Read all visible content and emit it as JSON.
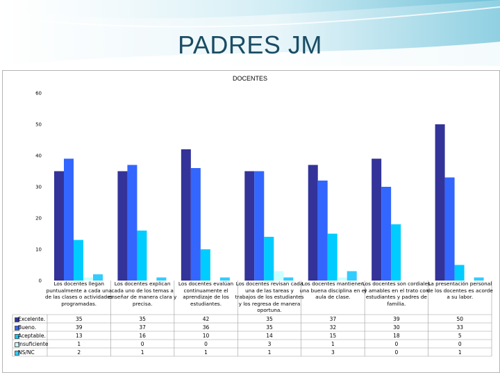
{
  "slide": {
    "title": "PADRES JM"
  },
  "chart_data": {
    "type": "bar",
    "title": "DOCENTES",
    "ylim": [
      0,
      60
    ],
    "yticks": [
      0,
      10,
      20,
      30,
      40,
      50,
      60
    ],
    "grid": false,
    "legend": "data-table-left",
    "categories": [
      "Los docentes llegan puntualmente a cada una de las clases o actividades programadas.",
      "Los docentes explican cada uno de los temas a enseñar de manera clara y precisa.",
      "Los docentes evalúan continuamente el aprendizaje de los estudiantes.",
      "Los docentes revisan cada una de las tareas y trabajos de los estudiantes y los regresa de manera oportuna.",
      "Los docentes mantienen una buena disciplina en el aula de clase.",
      "Los docentes son cordiales y amables en el trato con estudiantes y padres de familia.",
      "La presentación personal de los docentes es acorde a su labor."
    ],
    "series": [
      {
        "name": "Excelente.",
        "color": "#333399",
        "values": [
          35,
          35,
          42,
          35,
          37,
          39,
          50
        ]
      },
      {
        "name": "Bueno.",
        "color": "#3366ff",
        "values": [
          39,
          37,
          36,
          35,
          32,
          30,
          33
        ]
      },
      {
        "name": "Aceptable.",
        "color": "#00ccff",
        "values": [
          13,
          16,
          10,
          14,
          15,
          18,
          5
        ]
      },
      {
        "name": "Insuficiente",
        "color": "#ccffff",
        "values": [
          1,
          0,
          0,
          3,
          1,
          0,
          0
        ]
      },
      {
        "name": "NS/NC",
        "color": "#33ccff",
        "values": [
          2,
          1,
          1,
          1,
          3,
          0,
          1
        ]
      }
    ],
    "table_values": [
      [
        "35",
        "35",
        "42",
        "35",
        "37",
        "39",
        "50"
      ],
      [
        "39",
        "37",
        "36",
        "35",
        "32",
        "30",
        "33"
      ],
      [
        "13",
        "16",
        "10",
        "14",
        "15",
        "18",
        "5"
      ],
      [
        "1",
        "0",
        "0",
        "3",
        "1",
        "0",
        "0"
      ],
      [
        "2",
        "1",
        "1",
        "1",
        "3",
        "0",
        "1"
      ]
    ]
  }
}
